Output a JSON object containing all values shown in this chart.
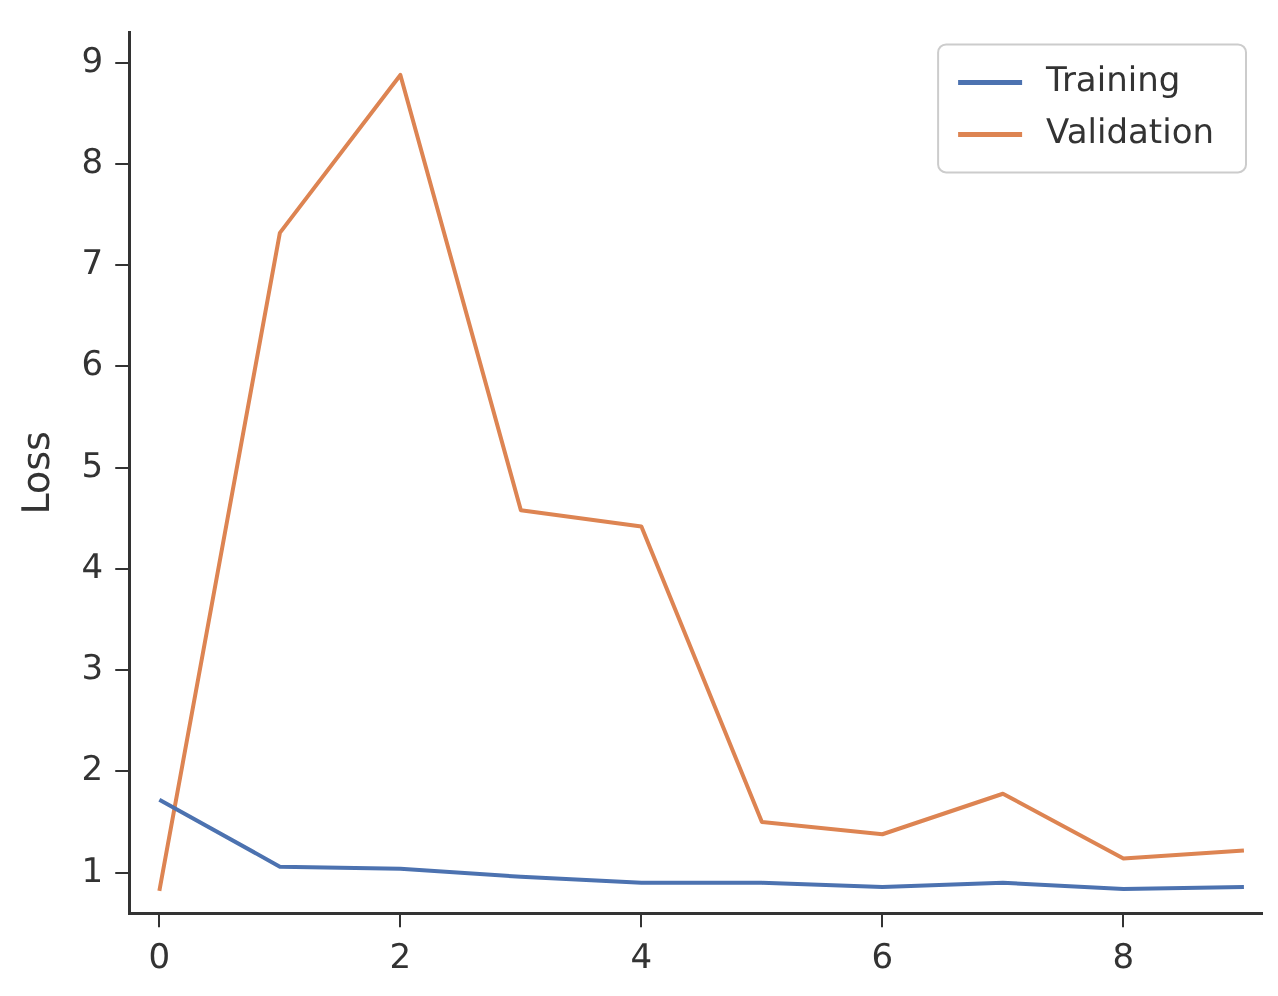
{
  "chart_data": {
    "type": "line",
    "ylabel": "Loss",
    "x": [
      0,
      1,
      2,
      3,
      4,
      5,
      6,
      7,
      8,
      9
    ],
    "series": [
      {
        "name": "Training",
        "color": "#4c72b0",
        "values": [
          1.72,
          1.06,
          1.04,
          0.96,
          0.9,
          0.9,
          0.86,
          0.9,
          0.84,
          0.86
        ]
      },
      {
        "name": "Validation",
        "color": "#dd8452",
        "values": [
          0.82,
          7.32,
          8.88,
          4.58,
          4.42,
          1.5,
          1.38,
          1.78,
          1.14,
          1.22
        ]
      }
    ],
    "xlim": [
      -0.25,
      9.15
    ],
    "ylim": [
      0.6,
      9.3
    ],
    "xticks": [
      0,
      2,
      4,
      6,
      8
    ],
    "yticks": [
      1,
      2,
      3,
      4,
      5,
      6,
      7,
      8,
      9
    ],
    "grid": false,
    "legend": "top right",
    "marker": "none",
    "line_style": "solid"
  }
}
